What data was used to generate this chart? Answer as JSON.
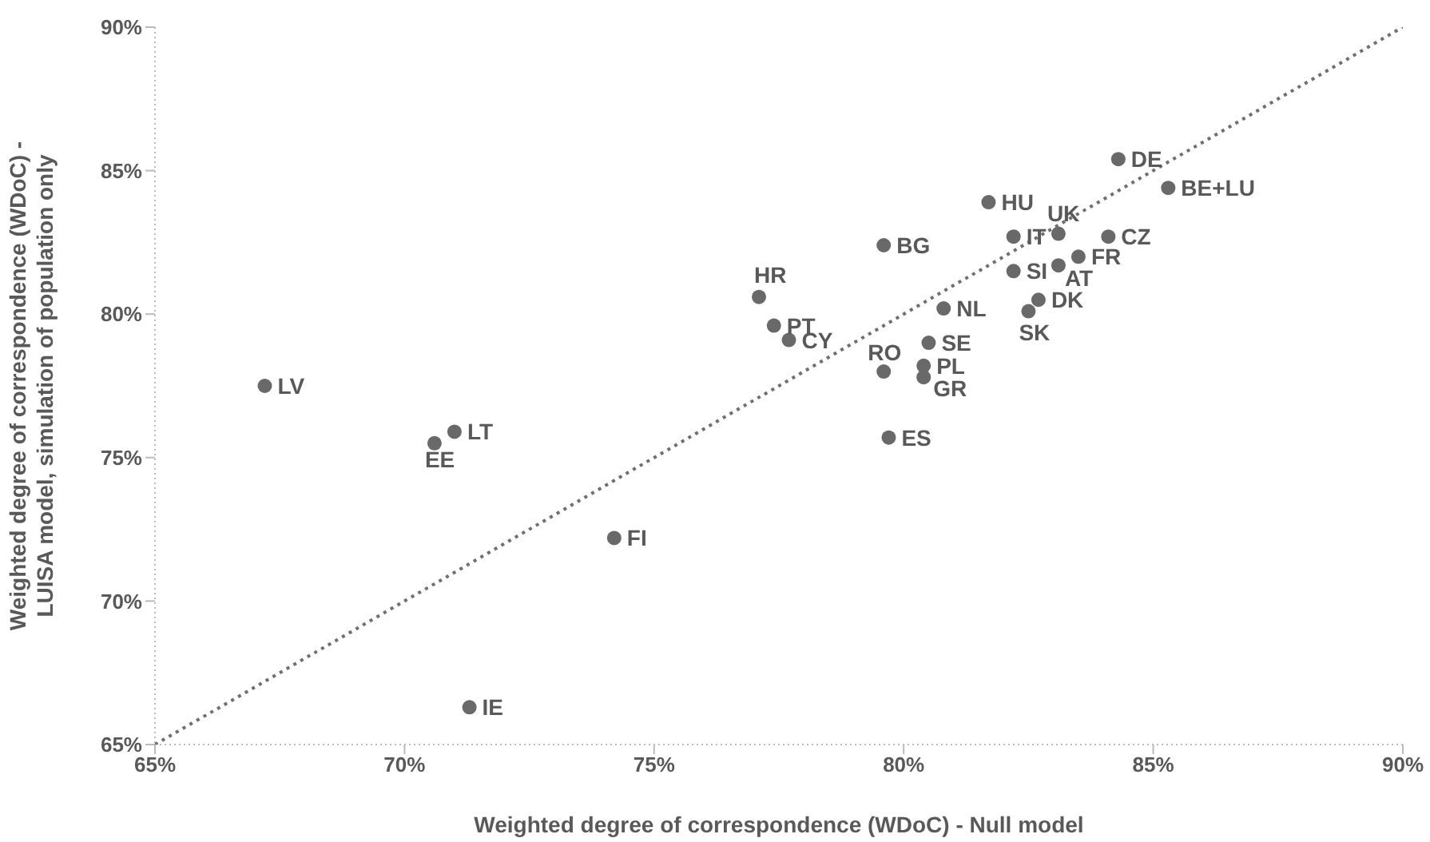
{
  "chart_data": {
    "type": "scatter",
    "xlabel": "Weighted degree of correspondence (WDoC) - Null model",
    "ylabel": "Weighted degree of correspondence (WDoC) - LUISA model, simulation of population only",
    "xlim": [
      65,
      90
    ],
    "ylim": [
      65,
      90
    ],
    "xticks": [
      {
        "value": 65,
        "label": "65%"
      },
      {
        "value": 70,
        "label": "70%"
      },
      {
        "value": 75,
        "label": "75%"
      },
      {
        "value": 80,
        "label": "80%"
      },
      {
        "value": 85,
        "label": "85%"
      },
      {
        "value": 90,
        "label": "90%"
      }
    ],
    "yticks": [
      {
        "value": 65,
        "label": "65%"
      },
      {
        "value": 70,
        "label": "70%"
      },
      {
        "value": 75,
        "label": "75%"
      },
      {
        "value": 80,
        "label": "80%"
      },
      {
        "value": 85,
        "label": "85%"
      },
      {
        "value": 90,
        "label": "90%"
      }
    ],
    "marker": "circle",
    "series": [
      {
        "name": "LV",
        "color": "#696969",
        "x": [
          67.2
        ],
        "values": [
          77.5
        ]
      },
      {
        "name": "LT",
        "color": "#696969",
        "x": [
          71.0
        ],
        "values": [
          75.9
        ]
      },
      {
        "name": "EE",
        "color": "#696969",
        "x": [
          70.6
        ],
        "values": [
          75.5
        ]
      },
      {
        "name": "FI",
        "color": "#696969",
        "x": [
          74.2
        ],
        "values": [
          72.2
        ]
      },
      {
        "name": "IE",
        "color": "#696969",
        "x": [
          71.3
        ],
        "values": [
          66.3
        ]
      },
      {
        "name": "HR",
        "color": "#696969",
        "x": [
          77.1
        ],
        "values": [
          80.6
        ]
      },
      {
        "name": "PT",
        "color": "#696969",
        "x": [
          77.4
        ],
        "values": [
          79.6
        ]
      },
      {
        "name": "CY",
        "color": "#696969",
        "x": [
          77.7
        ],
        "values": [
          79.1
        ]
      },
      {
        "name": "BG",
        "color": "#696969",
        "x": [
          79.6
        ],
        "values": [
          82.4
        ]
      },
      {
        "name": "RO",
        "color": "#696969",
        "x": [
          79.6
        ],
        "values": [
          78.0
        ]
      },
      {
        "name": "ES",
        "color": "#696969",
        "x": [
          79.7
        ],
        "values": [
          75.7
        ]
      },
      {
        "name": "SE",
        "color": "#696969",
        "x": [
          80.5
        ],
        "values": [
          79.0
        ]
      },
      {
        "name": "PL",
        "color": "#696969",
        "x": [
          80.4
        ],
        "values": [
          78.2
        ]
      },
      {
        "name": "GR",
        "color": "#696969",
        "x": [
          80.4
        ],
        "values": [
          77.8
        ]
      },
      {
        "name": "NL",
        "color": "#696969",
        "x": [
          80.8
        ],
        "values": [
          80.2
        ]
      },
      {
        "name": "HU",
        "color": "#696969",
        "x": [
          81.7
        ],
        "values": [
          83.9
        ]
      },
      {
        "name": "IT",
        "color": "#696969",
        "x": [
          82.2
        ],
        "values": [
          82.7
        ]
      },
      {
        "name": "SI",
        "color": "#696969",
        "x": [
          82.2
        ],
        "values": [
          81.5
        ]
      },
      {
        "name": "UK",
        "color": "#696969",
        "x": [
          83.1
        ],
        "values": [
          82.8
        ]
      },
      {
        "name": "AT",
        "color": "#696969",
        "x": [
          83.1
        ],
        "values": [
          81.7
        ]
      },
      {
        "name": "FR",
        "color": "#696969",
        "x": [
          83.5
        ],
        "values": [
          82.0
        ]
      },
      {
        "name": "DK",
        "color": "#696969",
        "x": [
          82.7
        ],
        "values": [
          80.5
        ]
      },
      {
        "name": "SK",
        "color": "#696969",
        "x": [
          82.5
        ],
        "values": [
          80.1
        ]
      },
      {
        "name": "CZ",
        "color": "#696969",
        "x": [
          84.1
        ],
        "values": [
          82.7
        ]
      },
      {
        "name": "DE",
        "color": "#696969",
        "x": [
          84.3
        ],
        "values": [
          85.4
        ]
      },
      {
        "name": "BE+LU",
        "color": "#696969",
        "x": [
          85.3
        ],
        "values": [
          84.4
        ]
      },
      {
        "type": "line",
        "color": "#707070",
        "line_style": "dotted",
        "marker": "none",
        "x": [
          65,
          90
        ],
        "values": [
          65,
          90
        ]
      }
    ]
  }
}
